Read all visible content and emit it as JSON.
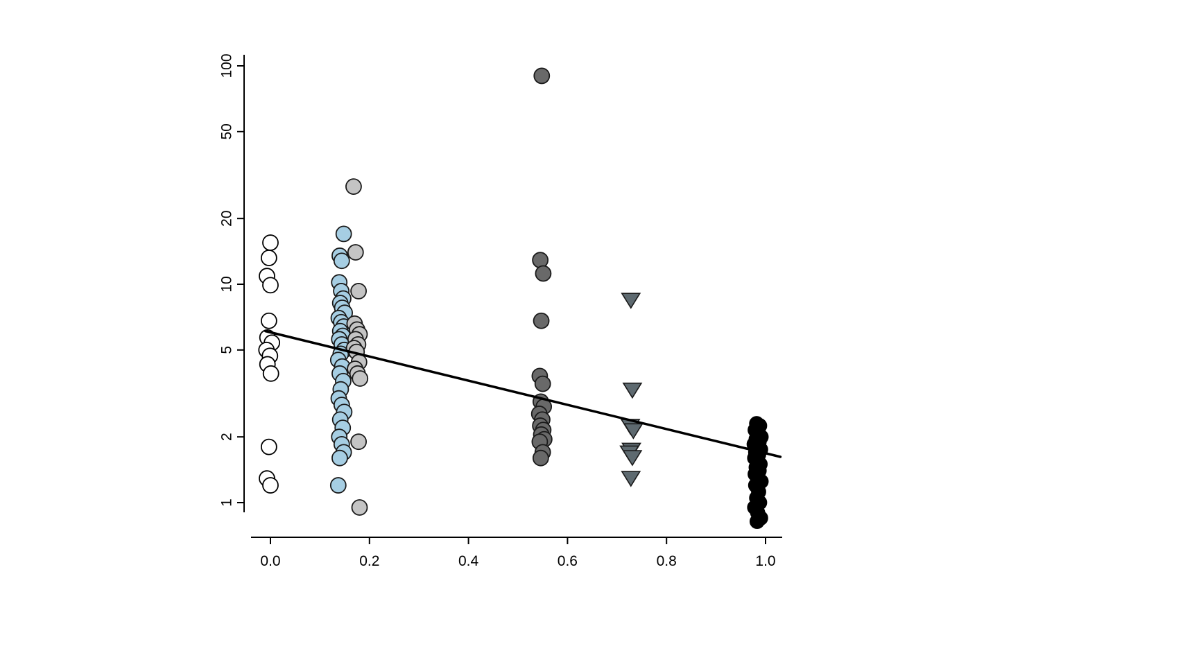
{
  "page": {
    "background": "#ffffff"
  },
  "chart_data": {
    "type": "scatter",
    "title": "",
    "xlabel": "",
    "ylabel": "",
    "grid": false,
    "legend": "none",
    "x_axis": {
      "range": [
        -0.05,
        1.07
      ],
      "ticks": [
        0.0,
        0.2,
        0.4,
        0.6,
        0.8,
        1.0
      ],
      "labels": [
        "0.0",
        "0.2",
        "0.4",
        "0.6",
        "0.8",
        "1.0"
      ]
    },
    "y_axis": {
      "scale": "log",
      "range": [
        0.75,
        120
      ],
      "ticks": [
        1,
        2,
        5,
        10,
        20,
        50,
        100
      ],
      "labels": [
        "1",
        "2",
        "5",
        "10",
        "20",
        "50",
        "100"
      ]
    },
    "fit_line": {
      "x": [
        -0.01,
        1.03
      ],
      "y": [
        6.1,
        1.62
      ],
      "color": "#000000",
      "width": 3.5
    },
    "series": [
      {
        "name": "open-circles-x0",
        "marker": "circle",
        "r": 11,
        "fill": "#ffffff",
        "stroke": "#000000",
        "points": [
          [
            0.0,
            15.5
          ],
          [
            -0.003,
            13.2
          ],
          [
            -0.007,
            10.9
          ],
          [
            0.0,
            9.9
          ],
          [
            -0.003,
            6.8
          ],
          [
            -0.006,
            5.7
          ],
          [
            0.003,
            5.4
          ],
          [
            -0.008,
            5.0
          ],
          [
            -0.001,
            4.7
          ],
          [
            -0.006,
            4.3
          ],
          [
            0.001,
            3.9
          ],
          [
            -0.003,
            1.8
          ],
          [
            -0.007,
            1.29
          ],
          [
            0.0,
            1.2
          ]
        ]
      },
      {
        "name": "lightblue-circles-x015",
        "marker": "circle",
        "r": 11,
        "fill": "#a6cee3",
        "stroke": "#1a1a1a",
        "points": [
          [
            0.148,
            17.0
          ],
          [
            0.14,
            13.5
          ],
          [
            0.144,
            12.8
          ],
          [
            0.139,
            10.2
          ],
          [
            0.143,
            9.3
          ],
          [
            0.147,
            8.6
          ],
          [
            0.141,
            8.2
          ],
          [
            0.145,
            7.8
          ],
          [
            0.15,
            7.4
          ],
          [
            0.138,
            7.0
          ],
          [
            0.143,
            6.7
          ],
          [
            0.148,
            6.4
          ],
          [
            0.141,
            6.1
          ],
          [
            0.146,
            5.8
          ],
          [
            0.139,
            5.6
          ],
          [
            0.144,
            5.3
          ],
          [
            0.149,
            5.0
          ],
          [
            0.142,
            4.8
          ],
          [
            0.137,
            4.5
          ],
          [
            0.145,
            4.2
          ],
          [
            0.14,
            3.9
          ],
          [
            0.147,
            3.6
          ],
          [
            0.142,
            3.3
          ],
          [
            0.138,
            3.0
          ],
          [
            0.144,
            2.8
          ],
          [
            0.149,
            2.6
          ],
          [
            0.141,
            2.4
          ],
          [
            0.146,
            2.2
          ],
          [
            0.139,
            2.0
          ],
          [
            0.144,
            1.85
          ],
          [
            0.148,
            1.7
          ],
          [
            0.14,
            1.6
          ],
          [
            0.137,
            1.2
          ]
        ]
      },
      {
        "name": "lightgray-circles-x018",
        "marker": "circle",
        "r": 11,
        "fill": "#c4c4c4",
        "stroke": "#1a1a1a",
        "points": [
          [
            0.168,
            28.0
          ],
          [
            0.172,
            14.0
          ],
          [
            0.178,
            9.3
          ],
          [
            0.17,
            6.6
          ],
          [
            0.175,
            6.2
          ],
          [
            0.18,
            5.9
          ],
          [
            0.172,
            5.6
          ],
          [
            0.177,
            5.3
          ],
          [
            0.169,
            5.1
          ],
          [
            0.174,
            4.9
          ],
          [
            0.179,
            4.4
          ],
          [
            0.171,
            4.1
          ],
          [
            0.176,
            3.9
          ],
          [
            0.181,
            3.7
          ],
          [
            0.178,
            1.9
          ],
          [
            0.18,
            0.95
          ]
        ]
      },
      {
        "name": "darkgray-circles-x055",
        "marker": "circle",
        "r": 11,
        "fill": "#696969",
        "stroke": "#1a1a1a",
        "points": [
          [
            0.548,
            90.0
          ],
          [
            0.545,
            12.9
          ],
          [
            0.551,
            11.2
          ],
          [
            0.547,
            6.8
          ],
          [
            0.544,
            3.8
          ],
          [
            0.55,
            3.5
          ],
          [
            0.546,
            2.9
          ],
          [
            0.552,
            2.75
          ],
          [
            0.543,
            2.55
          ],
          [
            0.549,
            2.4
          ],
          [
            0.545,
            2.25
          ],
          [
            0.551,
            2.15
          ],
          [
            0.547,
            2.05
          ],
          [
            0.553,
            1.95
          ],
          [
            0.544,
            1.9
          ],
          [
            0.55,
            1.7
          ],
          [
            0.546,
            1.6
          ]
        ]
      },
      {
        "name": "gray-triangles-x075",
        "marker": "triangle-down",
        "r": 12,
        "fill": "#5e6a70",
        "stroke": "#1a1a1a",
        "points": [
          [
            0.728,
            8.5
          ],
          [
            0.731,
            3.3
          ],
          [
            0.727,
            2.25
          ],
          [
            0.733,
            2.15
          ],
          [
            0.729,
            1.75
          ],
          [
            0.725,
            1.7
          ],
          [
            0.731,
            1.62
          ],
          [
            0.728,
            1.3
          ]
        ]
      },
      {
        "name": "black-circles-x10",
        "marker": "circle",
        "r": 10,
        "fill": "#000000",
        "stroke": "#000000",
        "points": [
          [
            0.982,
            2.3
          ],
          [
            0.988,
            2.25
          ],
          [
            0.979,
            2.15
          ],
          [
            0.985,
            2.1
          ],
          [
            0.991,
            2.0
          ],
          [
            0.981,
            1.95
          ],
          [
            0.987,
            1.9
          ],
          [
            0.977,
            1.85
          ],
          [
            0.984,
            1.8
          ],
          [
            0.99,
            1.75
          ],
          [
            0.98,
            1.7
          ],
          [
            0.986,
            1.66
          ],
          [
            0.978,
            1.6
          ],
          [
            0.983,
            1.55
          ],
          [
            0.989,
            1.5
          ],
          [
            0.981,
            1.45
          ],
          [
            0.987,
            1.4
          ],
          [
            0.979,
            1.35
          ],
          [
            0.985,
            1.3
          ],
          [
            0.991,
            1.25
          ],
          [
            0.98,
            1.2
          ],
          [
            0.986,
            1.12
          ],
          [
            0.982,
            1.05
          ],
          [
            0.988,
            1.0
          ],
          [
            0.978,
            0.95
          ],
          [
            0.984,
            0.9
          ],
          [
            0.99,
            0.85
          ],
          [
            0.983,
            0.82
          ]
        ]
      }
    ]
  }
}
